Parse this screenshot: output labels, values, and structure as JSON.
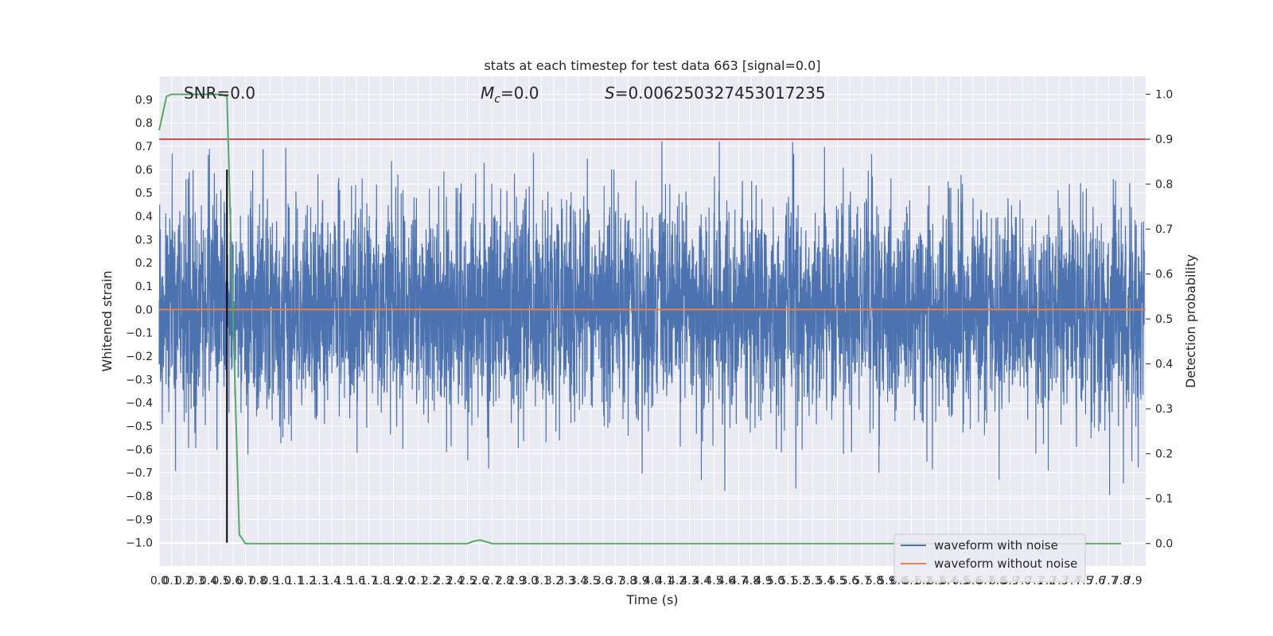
{
  "chart_data": {
    "type": "line",
    "title": "stats at each timestep for test data 663 [signal=0.0]",
    "xlabel": "Time (s)",
    "ylabel_left": "Whitened strain",
    "ylabel_right": "Detection probability",
    "xlim": [
      0.0,
      8.0
    ],
    "ylim_left": [
      -1.1,
      1.0
    ],
    "ylim_right": [
      -0.05,
      1.04
    ],
    "x_ticks": [
      "0.0",
      "0.1",
      "0.2",
      "0.3",
      "0.4",
      "0.5",
      "0.6",
      "0.7",
      "0.8",
      "0.9",
      "1.0",
      "1.1",
      "1.2",
      "1.3",
      "1.4",
      "1.5",
      "1.6",
      "1.7",
      "1.8",
      "1.9",
      "2.0",
      "2.1",
      "2.2",
      "2.3",
      "2.4",
      "2.5",
      "2.6",
      "2.7",
      "2.8",
      "2.9",
      "3.0",
      "3.1",
      "3.2",
      "3.3",
      "3.4",
      "3.5",
      "3.6",
      "3.7",
      "3.8",
      "3.9",
      "4.0",
      "4.1",
      "4.2",
      "4.3",
      "4.4",
      "4.5",
      "4.6",
      "4.7",
      "4.8",
      "4.9",
      "5.0",
      "5.1",
      "5.2",
      "5.3",
      "5.4",
      "5.5",
      "5.6",
      "5.7",
      "5.8",
      "5.9",
      "6.0",
      "6.1",
      "6.2",
      "6.3",
      "6.4",
      "6.5",
      "6.6",
      "6.7",
      "6.8",
      "6.9",
      "7.0",
      "7.1",
      "7.2",
      "7.3",
      "7.4",
      "7.5",
      "7.6",
      "7.7",
      "7.8",
      "7.9"
    ],
    "y_ticks_left": [
      "0.9",
      "0.8",
      "0.7",
      "0.6",
      "0.5",
      "0.4",
      "0.3",
      "0.2",
      "0.1",
      "0.0",
      "−0.1",
      "−0.2",
      "−0.3",
      "−0.4",
      "−0.5",
      "−0.6",
      "−0.7",
      "−0.8",
      "−0.9",
      "−1.0"
    ],
    "y_ticks_right": [
      "1.0",
      "0.9",
      "0.8",
      "0.7",
      "0.6",
      "0.5",
      "0.4",
      "0.3",
      "0.2",
      "0.1",
      "0.0"
    ],
    "annotations": {
      "snr": "SNR=0.0",
      "mc_symbol": "M",
      "mc_sub": "c",
      "mc_value": "=0.0",
      "s_symbol": "S",
      "s_value": "=0.006250327453017235"
    },
    "threshold_value": 0.9,
    "event_marker_x": 0.55,
    "noise_seed": 663,
    "noise_step_s": 0.0016,
    "series": [
      {
        "name": "waveform with noise",
        "color": "#4c72b0",
        "axis": "left"
      },
      {
        "name": "waveform without noise",
        "color": "#dd8452",
        "axis": "left",
        "x": [
          0.0,
          8.0
        ],
        "y": [
          0.0,
          0.0
        ]
      },
      {
        "color": "#55a868",
        "axis": "right",
        "x": [
          0.0,
          0.06,
          0.1,
          0.2,
          0.3,
          0.4,
          0.5,
          0.55,
          0.6,
          0.65,
          0.7,
          1.0,
          1.5,
          2.0,
          2.5,
          2.55,
          2.6,
          2.7,
          3.0,
          4.0,
          5.0,
          6.0,
          7.0,
          7.8
        ],
        "y": [
          0.92,
          0.995,
          1.0,
          1.0,
          1.0,
          1.0,
          1.0,
          0.995,
          0.5,
          0.02,
          0.0,
          0.0,
          0.0,
          0.0,
          0.0,
          0.005,
          0.008,
          0.0,
          0.0,
          0.0,
          0.0,
          0.0,
          0.0,
          0.0
        ]
      },
      {
        "color": "#c44e52",
        "axis": "right",
        "x": [
          0.0,
          8.0
        ],
        "y": [
          0.9,
          0.9
        ]
      }
    ],
    "legend": {
      "position": "lower-right",
      "entries": [
        "waveform with noise",
        "waveform without noise"
      ]
    },
    "grid": true,
    "colors": {
      "background": "#eaeaf2",
      "grid": "#ffffff",
      "text": "#262626"
    }
  }
}
